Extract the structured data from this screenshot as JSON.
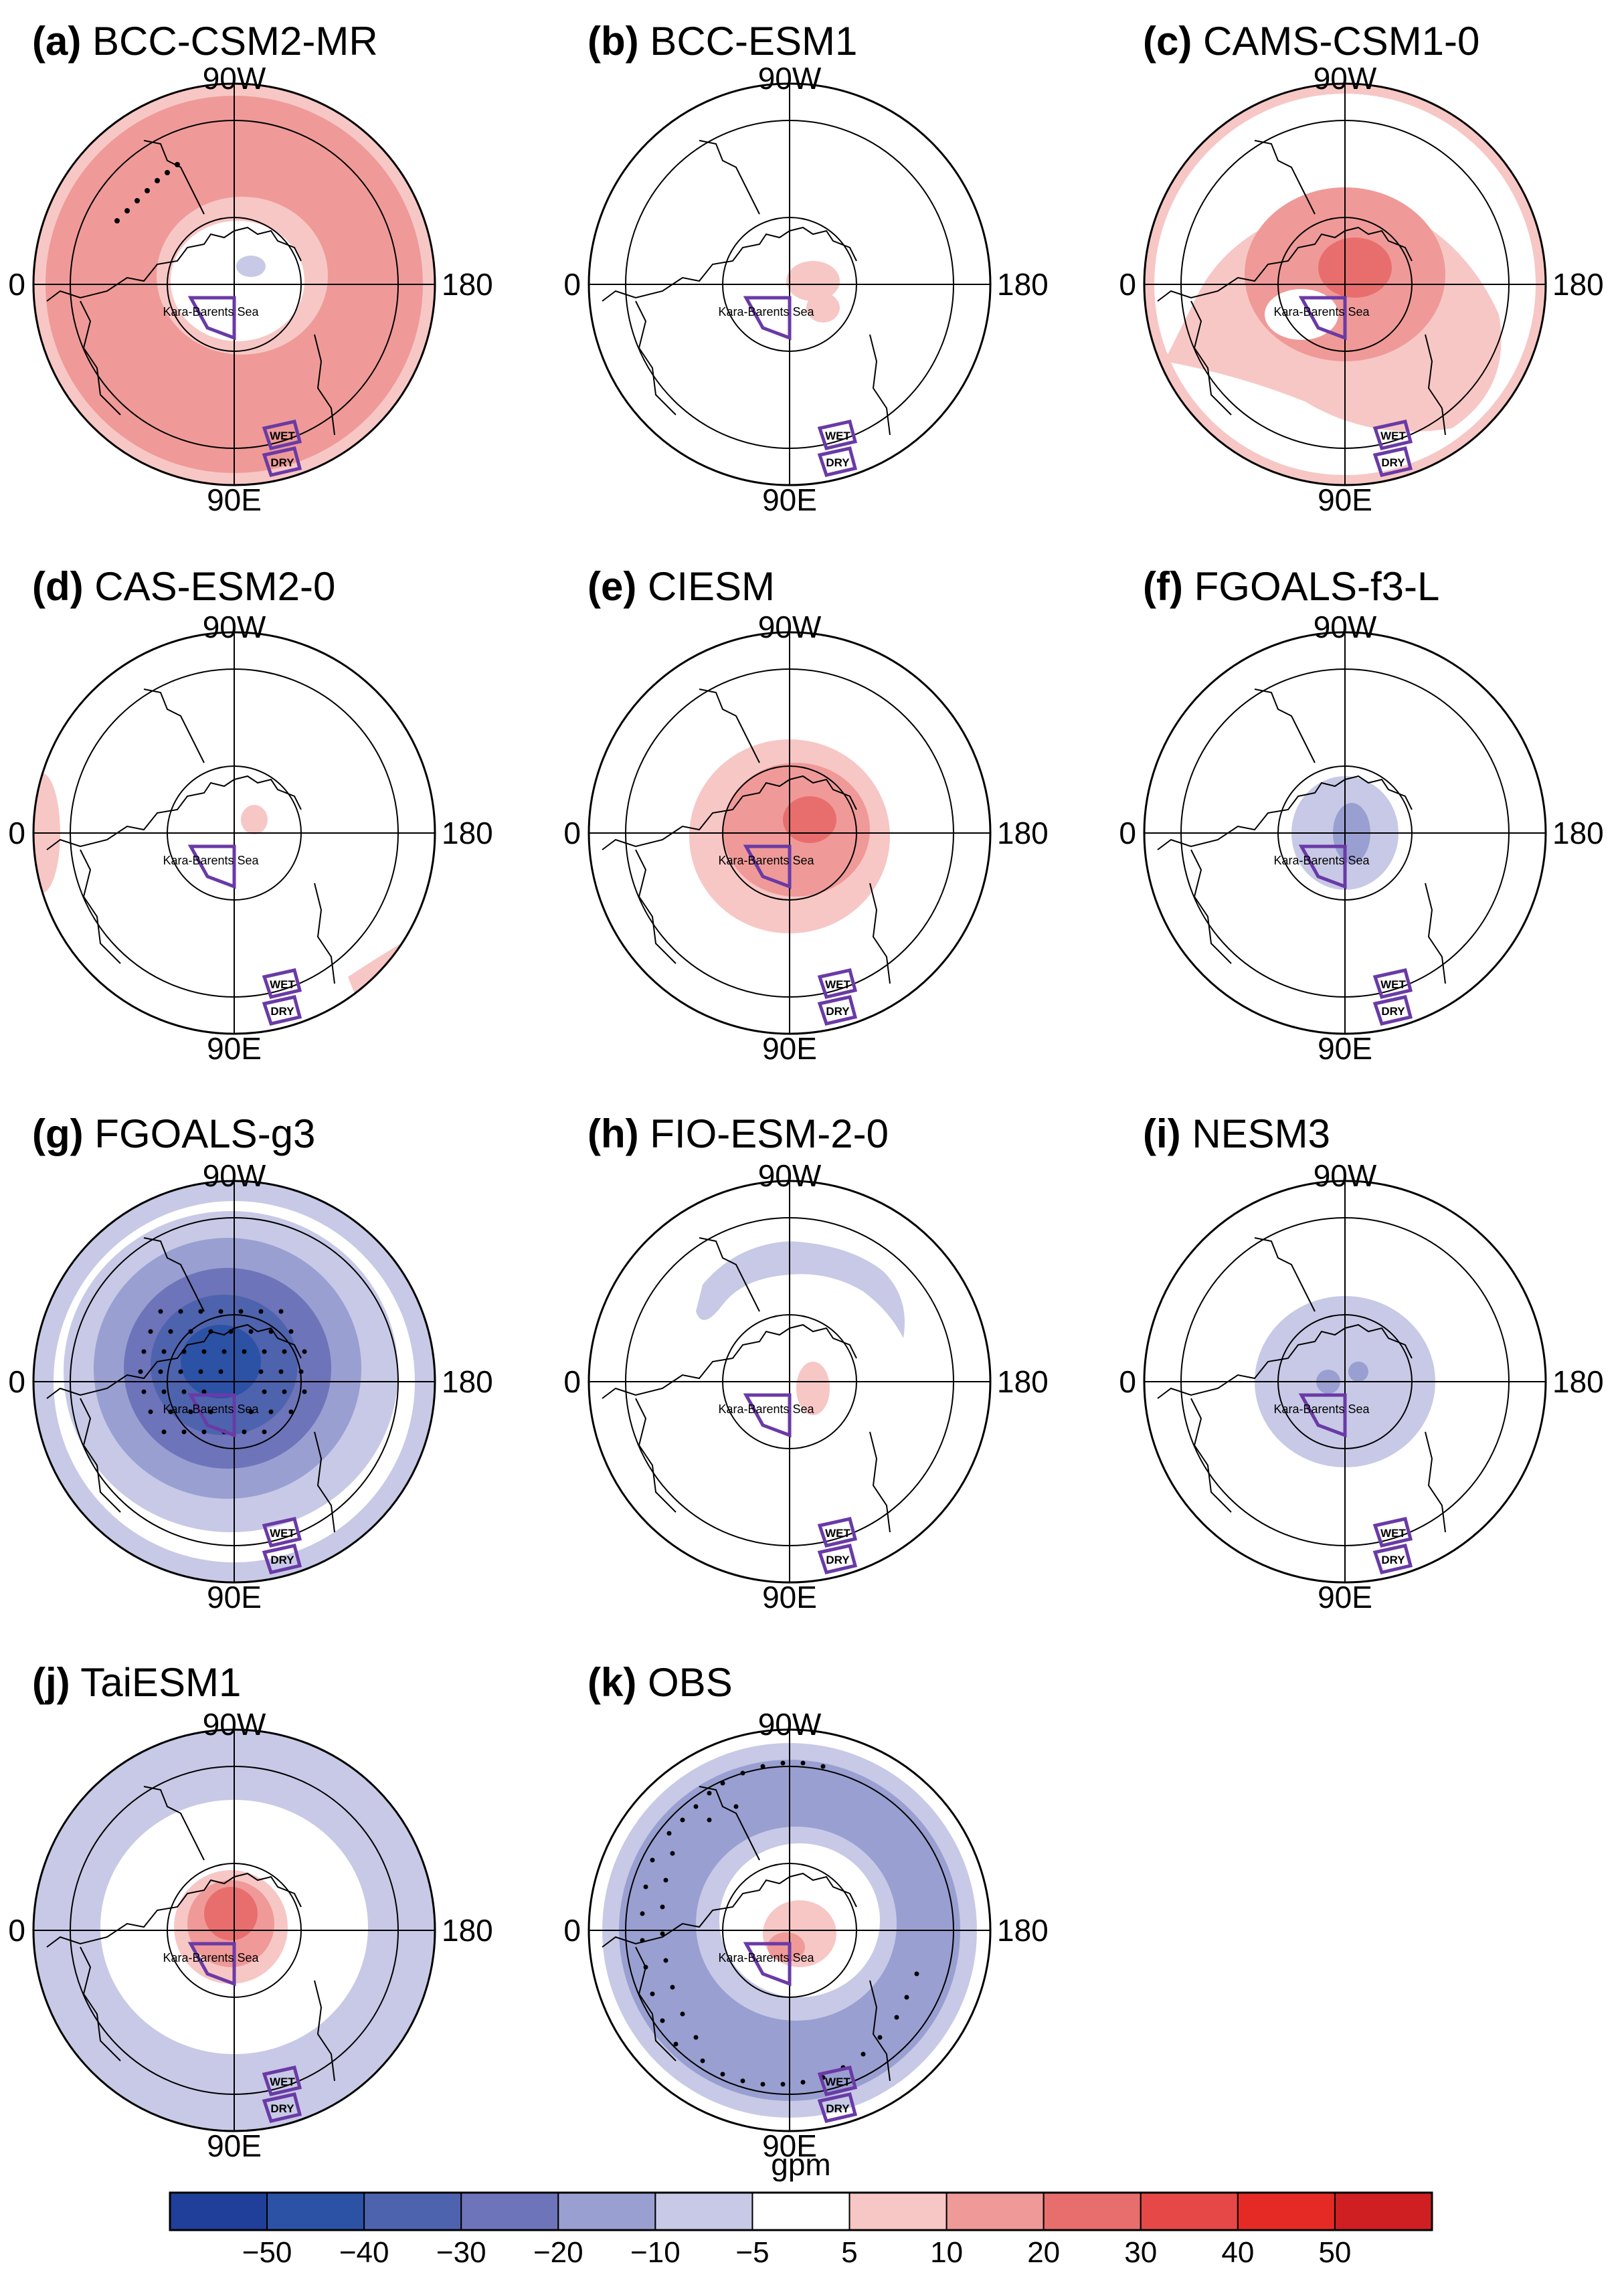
{
  "colorbar": {
    "unit": "gpm",
    "colors": [
      "#1f3f9a",
      "#2c52a6",
      "#4e63ad",
      "#6e74b9",
      "#9a9fd1",
      "#c7c9e6",
      "#ffffff",
      "#f7c7c5",
      "#ef9a98",
      "#e86e6d",
      "#e64848",
      "#e52a25",
      "#cf1f22"
    ],
    "labels": [
      "−50",
      "−40",
      "−30",
      "−20",
      "−10",
      "−5",
      "5",
      "10",
      "20",
      "30",
      "40",
      "50"
    ]
  },
  "labels": {
    "lon_top": "90W",
    "lon_bottom": "90E",
    "lon_right": "180",
    "lon_left": "0",
    "region_main": "Kara-Barents Sea",
    "region_wet": "WET",
    "region_dry": "DRY"
  },
  "panels": [
    {
      "tag": "(a)",
      "name": "BCC-CSM2-MR"
    },
    {
      "tag": "(b)",
      "name": "BCC-ESM1"
    },
    {
      "tag": "(c)",
      "name": "CAMS-CSM1-0"
    },
    {
      "tag": "(d)",
      "name": "CAS-ESM2-0"
    },
    {
      "tag": "(e)",
      "name": "CIESM"
    },
    {
      "tag": "(f)",
      "name": "FGOALS-f3-L"
    },
    {
      "tag": "(g)",
      "name": "FGOALS-g3"
    },
    {
      "tag": "(h)",
      "name": "FIO-ESM-2-0"
    },
    {
      "tag": "(i)",
      "name": "NESM3"
    },
    {
      "tag": "(j)",
      "name": "TaiESM1"
    },
    {
      "tag": "(k)",
      "name": "OBS"
    }
  ]
}
